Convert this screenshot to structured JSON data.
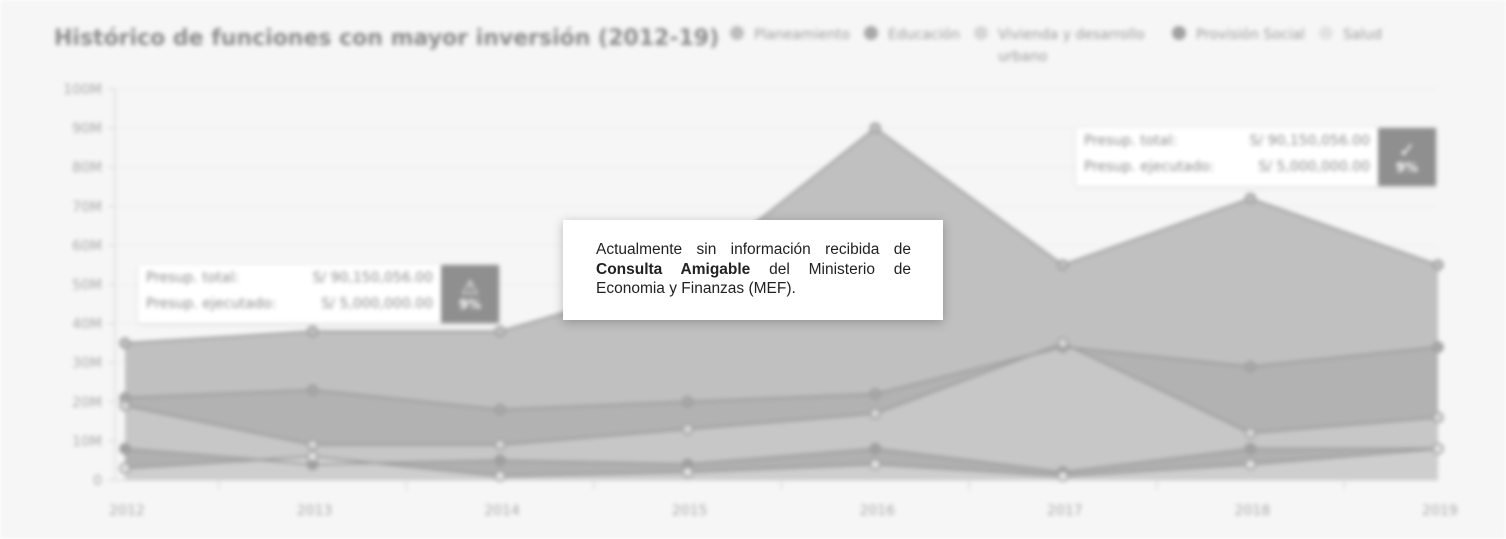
{
  "chart_data": {
    "type": "area",
    "title": "Histórico de funciones con mayor inversión (2012-19)",
    "categories": [
      "2012",
      "2013",
      "2014",
      "2015",
      "2016",
      "2017",
      "2018",
      "2019"
    ],
    "y_ticks": [
      "0",
      "10M",
      "20M",
      "30M",
      "40M",
      "50M",
      "60M",
      "70M",
      "80M",
      "90M",
      "100M"
    ],
    "ylim": [
      0,
      100000000
    ],
    "legend_position": "top-right",
    "series": [
      {
        "name": "Planeamiento",
        "color": "#bdbdbd",
        "values": [
          35000000,
          38000000,
          38000000,
          52000000,
          90000000,
          55000000,
          72000000,
          55000000
        ]
      },
      {
        "name": "Educación",
        "color": "#a8a8a8",
        "values": [
          21000000,
          23000000,
          18000000,
          20000000,
          22000000,
          34000000,
          29000000,
          34000000
        ]
      },
      {
        "name": "Vivienda y desarrollo urbano",
        "color": "#d6d6d6",
        "values": [
          19000000,
          9000000,
          9000000,
          13000000,
          17000000,
          35000000,
          12000000,
          16000000
        ]
      },
      {
        "name": "Provisión Social",
        "color": "#a0a0a0",
        "values": [
          8000000,
          4000000,
          5000000,
          4000000,
          8000000,
          2000000,
          8000000,
          8000000
        ]
      },
      {
        "name": "Salud",
        "color": "#e2e2e2",
        "values": [
          3000000,
          6000000,
          1000000,
          2000000,
          4000000,
          1000000,
          4000000,
          8000000
        ]
      }
    ]
  },
  "tooltips": [
    {
      "total_label": "Presup. total:",
      "total_value": "S/ 90,150,056.00",
      "exec_label": "Presup. ejecutado:",
      "exec_value": "S/ 5,000,000.00",
      "percent": "9%",
      "icon": "warning-icon"
    },
    {
      "total_label": "Presup. total:",
      "total_value": "S/ 90,150,056.00",
      "exec_label": "Presup. ejecutado:",
      "exec_value": "S/ 5,000,000.00",
      "percent": "9%",
      "icon": "check-circle-icon"
    }
  ],
  "notice": {
    "text_before": "Actualmente sin información recibida de ",
    "bold": "Consulta Amigable",
    "text_after": " del Ministerio de Economia y Finanzas (MEF)."
  }
}
